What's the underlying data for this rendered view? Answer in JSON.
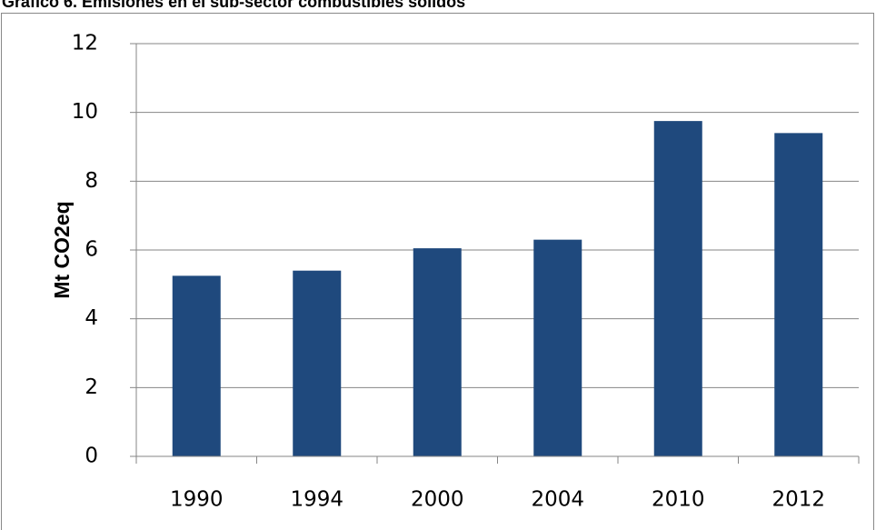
{
  "chart_data": {
    "type": "bar",
    "title": "Gráfico 6. Emisiones en el sub-sector combustibles sólidos",
    "y_label": "Mt CO2eq",
    "categories": [
      "1990",
      "1994",
      "2000",
      "2004",
      "2010",
      "2012"
    ],
    "values": [
      5.25,
      5.4,
      6.05,
      6.3,
      9.75,
      9.4
    ],
    "color": "#1f497d",
    "ylim": [
      0,
      12
    ],
    "yticks": [
      0,
      2,
      4,
      6,
      8,
      10,
      12
    ],
    "grid": true
  }
}
